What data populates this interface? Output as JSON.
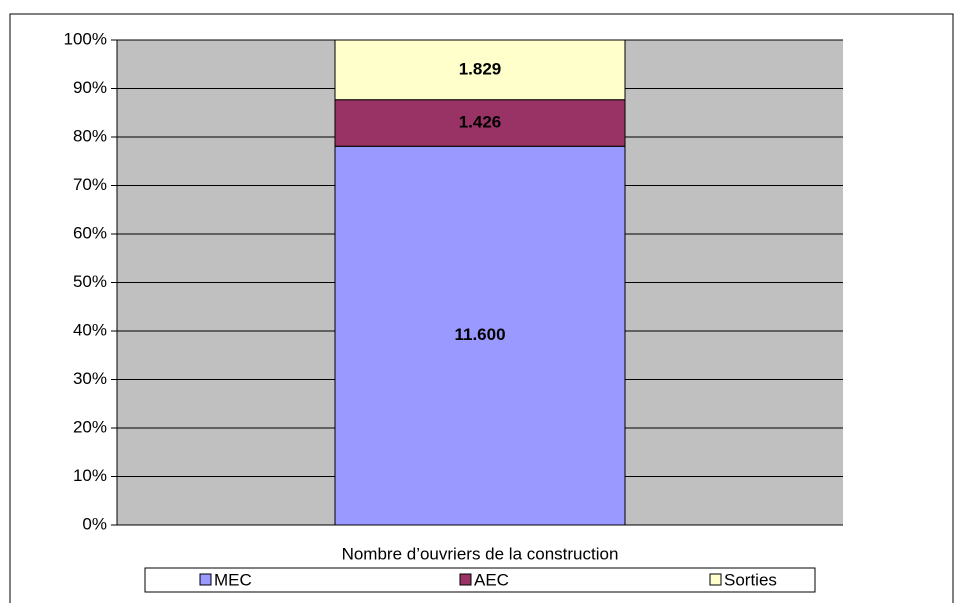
{
  "chart_data": {
    "type": "stacked_percent_bar",
    "x_label": "Nombre d’ouvriers de la construction",
    "categories": [
      null
    ],
    "series": [
      {
        "name": "MEC",
        "color": "#9999ff",
        "values": [
          11600
        ],
        "value_labels": [
          "11.600"
        ]
      },
      {
        "name": "AEC",
        "color": "#993366",
        "values": [
          1426
        ],
        "value_labels": [
          "1.426"
        ]
      },
      {
        "name": "Sorties",
        "color": "#ffffcc",
        "values": [
          1829
        ],
        "value_labels": [
          "1.829"
        ]
      }
    ],
    "ylim": [
      0,
      100
    ],
    "yticks": [
      {
        "value": 0,
        "label": "0%"
      },
      {
        "value": 10,
        "label": "10%"
      },
      {
        "value": 20,
        "label": "20%"
      },
      {
        "value": 30,
        "label": "30%"
      },
      {
        "value": 40,
        "label": "40%"
      },
      {
        "value": 50,
        "label": "50%"
      },
      {
        "value": 60,
        "label": "60%"
      },
      {
        "value": 70,
        "label": "70%"
      },
      {
        "value": 80,
        "label": "80%"
      },
      {
        "value": 90,
        "label": "90%"
      },
      {
        "value": 100,
        "label": "100%"
      }
    ],
    "grid": true,
    "plot_background": "#c0c0c0",
    "legend": "bottom"
  }
}
